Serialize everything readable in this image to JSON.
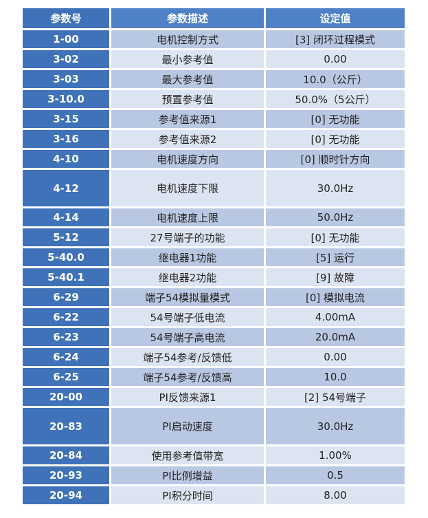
{
  "headers": [
    "参数号",
    "参数描述",
    "设定值"
  ],
  "rows": [
    {
      "id": "1-00",
      "desc": "电机控制方式",
      "value": "[3]  闭环过程模式"
    },
    {
      "id": "3-02",
      "desc": "最小参考值",
      "value": "0.00"
    },
    {
      "id": "3-03",
      "desc": "最大参考值",
      "value": "10.0（公斤）"
    },
    {
      "id": "3-10.0",
      "desc": "预置参考值",
      "value": "50.0%（5公斤）"
    },
    {
      "id": "3-15",
      "desc": "参考值来源1",
      "value": "[0]  无功能"
    },
    {
      "id": "3-16",
      "desc": "参考值来源2",
      "value": "[0]  无功能"
    },
    {
      "id": "4-10",
      "desc": "电机速度方向",
      "value": "[0]  顺时针方向"
    },
    {
      "id": "4-12",
      "desc": "电机速度下限",
      "value": "30.0Hz",
      "tall": true
    },
    {
      "id": "4-14",
      "desc": "电机速度上限",
      "value": "50.0Hz"
    },
    {
      "id": "5-12",
      "desc": "27号端子的功能",
      "value": "[0]  无功能"
    },
    {
      "id": "5-40.0",
      "desc": "继电器1功能",
      "value": "[5]  运行"
    },
    {
      "id": "5-40.1",
      "desc": "继电器2功能",
      "value": "[9]  故障"
    },
    {
      "id": "6-29",
      "desc": "端子54模拟量模式",
      "value": "[0]  模拟电流"
    },
    {
      "id": "6-22",
      "desc": "54号端子低电流",
      "value": "4.00mA"
    },
    {
      "id": "6-23",
      "desc": "54号端子高电流",
      "value": "20.0mA"
    },
    {
      "id": "6-24",
      "desc": "端子54参考/反馈低",
      "value": "0.00"
    },
    {
      "id": "6-25",
      "desc": "端子54参考/反馈高",
      "value": "10.0"
    },
    {
      "id": "20-00",
      "desc": "PI反馈来源1",
      "value": "[2] 54号端子"
    },
    {
      "id": "20-83",
      "desc": "PI启动速度",
      "value": "30.0Hz",
      "tall": true
    },
    {
      "id": "20-84",
      "desc": "使用参考值带宽",
      "value": "1.00%"
    },
    {
      "id": "20-93",
      "desc": "PI比例增益",
      "value": "0.5"
    },
    {
      "id": "20-94",
      "desc": "PI积分时间",
      "value": "8.00"
    }
  ],
  "colors": {
    "header": "#4f81c6",
    "id_column": "#3f72b8",
    "row_dark": "#b9c8e2",
    "row_light": "#dde4f1"
  }
}
